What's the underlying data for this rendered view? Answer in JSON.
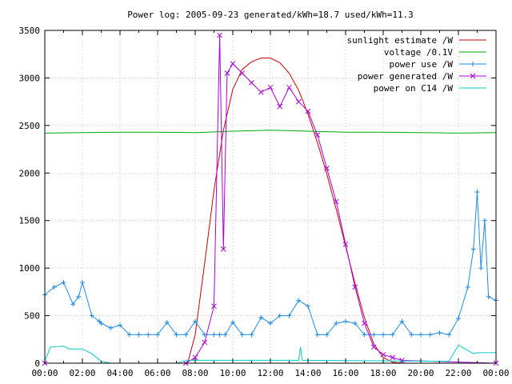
{
  "chart_data": {
    "type": "line",
    "title": "Power log: 2005-09-23 generated/kWh=18.7 used/kWh=11.3",
    "xlabel": "",
    "ylabel": "",
    "xlim_hours": [
      0,
      24
    ],
    "ylim": [
      0,
      3500
    ],
    "x_ticks": [
      "00:00",
      "02:00",
      "04:00",
      "06:00",
      "08:00",
      "10:00",
      "12:00",
      "14:00",
      "16:00",
      "18:00",
      "20:00",
      "22:00",
      "00:00"
    ],
    "y_ticks": [
      0,
      500,
      1000,
      1500,
      2000,
      2500,
      3000,
      3500
    ],
    "grid": true,
    "legend_position": "top-right",
    "series": [
      {
        "name": "sunlight estimate /W",
        "color": "#cc0000",
        "style": "line",
        "x_hours": [
          7.6,
          8.0,
          8.5,
          9.0,
          9.5,
          10.0,
          10.5,
          11.0,
          11.5,
          12.0,
          12.5,
          13.0,
          13.5,
          14.0,
          14.5,
          15.0,
          15.5,
          16.0,
          16.5,
          17.0,
          17.5,
          18.0,
          18.5,
          19.0
        ],
        "values": [
          0,
          300,
          1050,
          1820,
          2450,
          2880,
          3090,
          3170,
          3210,
          3210,
          3160,
          3050,
          2870,
          2620,
          2320,
          1990,
          1620,
          1230,
          840,
          480,
          200,
          60,
          10,
          0
        ]
      },
      {
        "name": "voltage /0.1V",
        "color": "#00aa00",
        "style": "line",
        "x_hours": [
          0,
          2,
          4,
          6,
          8,
          10,
          12,
          14,
          16,
          18,
          20,
          22,
          24
        ],
        "values": [
          2420,
          2425,
          2430,
          2430,
          2425,
          2440,
          2450,
          2440,
          2430,
          2430,
          2425,
          2420,
          2425
        ]
      },
      {
        "name": "power use /W",
        "color": "#1e8be8",
        "style": "linespoints-plus",
        "x_hours": [
          0,
          0.5,
          1.0,
          1.5,
          1.8,
          2.0,
          2.5,
          2.9,
          3.0,
          3.5,
          4.0,
          4.5,
          5.0,
          5.5,
          6.0,
          6.5,
          7.0,
          7.5,
          8.0,
          8.5,
          9.0,
          9.3,
          9.6,
          10.0,
          10.5,
          11.0,
          11.5,
          12.0,
          12.5,
          13.0,
          13.5,
          14.0,
          14.5,
          15.0,
          15.5,
          16.0,
          16.5,
          17.0,
          17.5,
          18.0,
          18.5,
          19.0,
          19.5,
          20.0,
          20.5,
          21.0,
          21.5,
          22.0,
          22.5,
          22.8,
          23.0,
          23.2,
          23.4,
          23.6,
          24.0
        ],
        "values": [
          720,
          800,
          850,
          620,
          700,
          850,
          500,
          440,
          420,
          370,
          400,
          300,
          300,
          300,
          300,
          430,
          300,
          300,
          440,
          300,
          300,
          300,
          300,
          430,
          300,
          300,
          480,
          420,
          500,
          500,
          660,
          600,
          300,
          300,
          420,
          440,
          420,
          300,
          300,
          300,
          300,
          440,
          300,
          300,
          300,
          320,
          300,
          470,
          800,
          1200,
          1800,
          1000,
          1500,
          700,
          660
        ]
      },
      {
        "name": "power generated /W",
        "color": "#aa00dd",
        "style": "linespoints-x",
        "x_hours": [
          0,
          7.5,
          8.0,
          8.5,
          9.0,
          9.3,
          9.5,
          9.7,
          10.0,
          10.5,
          11.0,
          11.5,
          12.0,
          12.5,
          13.0,
          13.5,
          14.0,
          14.5,
          15.0,
          15.5,
          16.0,
          16.5,
          17.0,
          17.5,
          18.0,
          18.5,
          19.0,
          24.0
        ],
        "values": [
          0,
          0,
          60,
          220,
          600,
          3450,
          1200,
          3050,
          3150,
          3050,
          2950,
          2850,
          2900,
          2700,
          2900,
          2750,
          2650,
          2400,
          2050,
          1700,
          1250,
          800,
          420,
          170,
          90,
          60,
          30,
          0
        ]
      },
      {
        "name": "power on C14 /W",
        "color": "#00cccc",
        "style": "line",
        "x_hours": [
          0,
          0.3,
          1.0,
          1.3,
          2.0,
          2.5,
          3.0,
          3.5,
          7.0,
          7.6,
          13.5,
          13.6,
          13.7,
          21.5,
          22.0,
          22.8,
          23.0,
          24.0
        ],
        "values": [
          20,
          170,
          180,
          150,
          150,
          100,
          20,
          0,
          0,
          30,
          30,
          170,
          30,
          20,
          190,
          100,
          110,
          110
        ]
      }
    ]
  }
}
